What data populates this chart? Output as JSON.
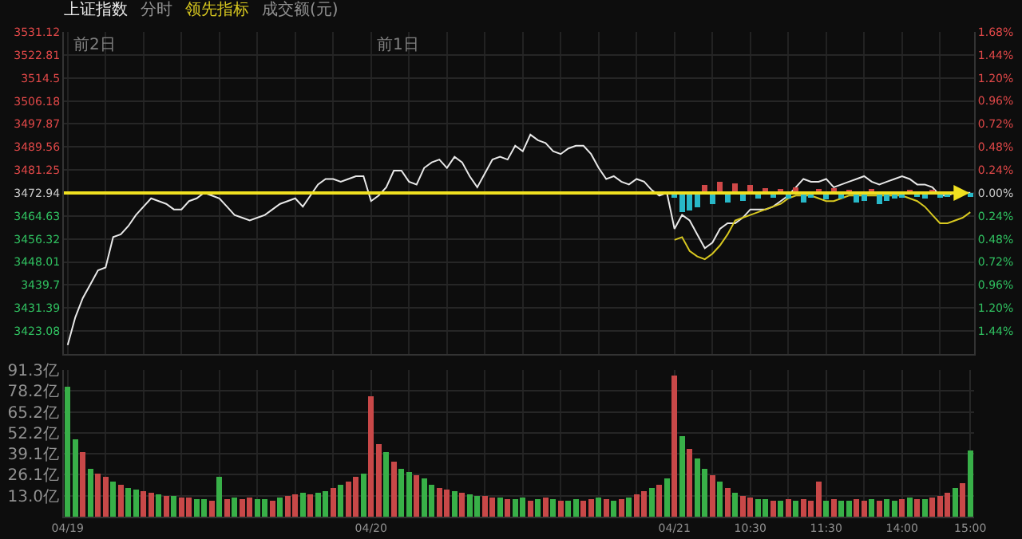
{
  "chart_data": [
    {
      "type": "line",
      "legend": "top left",
      "grid": true,
      "tick_labels": "y",
      "annotations": [
        "分时",
        "成交额(元)",
        "前2日",
        "前1日"
      ],
      "categories": [
        null,
        null,
        null,
        null,
        null,
        null,
        null,
        null,
        null,
        null,
        null,
        null,
        null,
        null,
        null,
        null,
        null,
        null,
        null,
        null,
        null,
        null,
        null,
        null,
        null,
        null,
        null,
        null,
        null,
        null,
        null,
        null,
        null,
        null,
        null,
        null,
        null,
        null,
        null,
        null,
        null,
        null,
        null,
        null,
        null,
        null,
        null,
        null,
        null,
        null,
        null,
        null,
        null,
        null,
        null,
        null,
        null,
        null,
        null,
        null,
        null,
        null,
        null,
        null,
        null,
        null,
        null,
        null,
        null,
        null,
        null,
        null,
        null,
        null,
        null,
        null,
        null,
        null,
        null,
        null,
        null,
        null,
        null,
        null,
        null,
        null,
        null,
        null,
        null,
        null,
        null,
        null,
        null,
        null,
        null,
        null,
        null,
        null,
        null,
        null,
        null,
        null,
        null,
        null,
        null,
        null,
        null,
        null,
        null,
        null,
        null,
        null,
        null,
        null,
        null,
        null,
        null,
        null,
        null,
        null
      ],
      "ylim": [
        3414.77,
        3531.12
      ],
      "yticks": [
        3531.12,
        3522.81,
        3514.5,
        3506.18,
        3497.87,
        3489.56,
        3481.25,
        3472.94,
        3464.63,
        3456.32,
        3448.01,
        3439.7,
        3431.39,
        3423.08
      ],
      "y2lim": [
        -1.68,
        1.68
      ],
      "y2ticks": [
        {
          "value": 1.68,
          "label": "1.68%"
        },
        {
          "value": 1.44,
          "label": "1.44%"
        },
        {
          "value": 1.2,
          "label": "1.20%"
        },
        {
          "value": 0.96,
          "label": "0.96%"
        },
        {
          "value": 0.72,
          "label": "0.72%"
        },
        {
          "value": 0.48,
          "label": "0.48%"
        },
        {
          "value": 0.24,
          "label": "0.24%"
        },
        {
          "value": 0,
          "label": "0.00%"
        },
        {
          "value": -0.24,
          "label": "0.24%"
        },
        {
          "value": -0.48,
          "label": "0.48%"
        },
        {
          "value": -0.72,
          "label": "0.72%"
        },
        {
          "value": -0.96,
          "label": "0.96%"
        },
        {
          "value": -1.2,
          "label": "1.20%"
        },
        {
          "value": -1.44,
          "label": "1.44%"
        }
      ],
      "ref_lines": [
        {
          "axis": "y",
          "value": 3472.94,
          "color": "#f0e020"
        }
      ],
      "series": [
        {
          "name": "上证指数",
          "color": "#e8e8e8",
          "values": [
            3418,
            3428,
            3435,
            3440,
            3445,
            3446,
            3457,
            3458,
            3461,
            3465,
            3468,
            3471,
            3470,
            3469,
            3467,
            3467,
            3470,
            3471,
            3473,
            3472,
            3471,
            3468,
            3465,
            3464,
            3463,
            3464,
            3465,
            3467,
            3469,
            3470,
            3471,
            3468,
            3472,
            3476,
            3478,
            3478,
            3477,
            3478,
            3479,
            3479,
            3470,
            3472,
            3475,
            3481,
            3481,
            3477,
            3476,
            3482,
            3484,
            3485,
            3482,
            3486,
            3484,
            3479,
            3475,
            3480,
            3485,
            3486,
            3485,
            3490,
            3488,
            3494,
            3492,
            3491,
            3488,
            3487,
            3489,
            3490,
            3490,
            3487,
            3482,
            3478,
            3479,
            3477,
            3476,
            3478,
            3477,
            3474,
            3472,
            3473,
            3460,
            3465,
            3463,
            3458,
            3453,
            3455,
            3460,
            3462,
            3462,
            3464,
            3467,
            3467,
            3467,
            3468,
            3470,
            3472,
            3475,
            3478,
            3477,
            3477,
            3478,
            3475,
            3476,
            3477,
            3478,
            3479,
            3477,
            3476,
            3477,
            3478,
            3479,
            3478,
            3476,
            3476,
            3475,
            3472,
            3472,
            3473,
            3473,
            3473
          ]
        },
        {
          "name": "领先指标",
          "color": "#d8c820",
          "values": [
            null,
            null,
            null,
            null,
            null,
            null,
            null,
            null,
            null,
            null,
            null,
            null,
            null,
            null,
            null,
            null,
            null,
            null,
            null,
            null,
            null,
            null,
            null,
            null,
            null,
            null,
            null,
            null,
            null,
            null,
            null,
            null,
            null,
            null,
            null,
            null,
            null,
            null,
            null,
            null,
            null,
            null,
            null,
            null,
            null,
            null,
            null,
            null,
            null,
            null,
            null,
            null,
            null,
            null,
            null,
            null,
            null,
            null,
            null,
            null,
            null,
            null,
            null,
            null,
            null,
            null,
            null,
            null,
            null,
            null,
            null,
            null,
            null,
            null,
            null,
            null,
            null,
            null,
            null,
            null,
            3456,
            3457,
            3452,
            3450,
            3449,
            3451,
            3454,
            3458,
            3463,
            3464,
            3465,
            3466,
            3467,
            3468,
            3469,
            3471,
            3472,
            3472,
            3472,
            3471,
            3470,
            3470,
            3471,
            3472,
            3472,
            3472,
            3472,
            3472,
            3472,
            3472,
            3472,
            3471,
            3470,
            3468,
            3465,
            3462,
            3462,
            3463,
            3464,
            3466
          ]
        },
        {
          "type": "bar",
          "axis": "y2",
          "values": [
            null,
            null,
            null,
            null,
            null,
            null,
            null,
            null,
            null,
            null,
            null,
            null,
            null,
            null,
            null,
            null,
            null,
            null,
            null,
            null,
            null,
            null,
            null,
            null,
            null,
            null,
            null,
            null,
            null,
            null,
            null,
            null,
            null,
            null,
            null,
            null,
            null,
            null,
            null,
            null,
            null,
            null,
            null,
            null,
            null,
            null,
            null,
            null,
            null,
            null,
            null,
            null,
            null,
            null,
            null,
            null,
            null,
            null,
            null,
            null,
            null,
            null,
            null,
            null,
            null,
            null,
            null,
            null,
            null,
            null,
            null,
            null,
            null,
            null,
            null,
            null,
            null,
            null,
            null,
            null,
            -0.05,
            -0.2,
            -0.18,
            -0.15,
            0.08,
            -0.12,
            0.12,
            -0.1,
            0.1,
            -0.08,
            0.08,
            -0.06,
            0.05,
            -0.05,
            0.04,
            -0.06,
            0.06,
            -0.1,
            -0.05,
            0.04,
            -0.07,
            0.05,
            -0.06,
            0.03,
            -0.1,
            -0.08,
            0.04,
            -0.12,
            -0.08,
            -0.06,
            -0.05,
            0.03,
            -0.04,
            -0.06,
            0.03,
            -0.05,
            -0.04,
            null,
            null,
            -0.04
          ],
          "colors": [
            null,
            null,
            null,
            null,
            null,
            null,
            null,
            null,
            null,
            null,
            null,
            null,
            null,
            null,
            null,
            null,
            null,
            null,
            null,
            null,
            null,
            null,
            null,
            null,
            null,
            null,
            null,
            null,
            null,
            null,
            null,
            null,
            null,
            null,
            null,
            null,
            null,
            null,
            null,
            null,
            null,
            null,
            null,
            null,
            null,
            null,
            null,
            null,
            null,
            null,
            null,
            null,
            null,
            null,
            null,
            null,
            null,
            null,
            null,
            null,
            null,
            null,
            null,
            null,
            null,
            null,
            null,
            null,
            null,
            null,
            null,
            null,
            null,
            null,
            null,
            null,
            null,
            null,
            null,
            null,
            "#28b8c8",
            "#28b8c8",
            "#28b8c8",
            "#28b8c8",
            "#d04848",
            "#28b8c8",
            "#d04848",
            "#28b8c8",
            "#d04848",
            "#28b8c8",
            "#d04848",
            "#28b8c8",
            "#d04848",
            "#28b8c8",
            "#d04848",
            "#28b8c8",
            "#d04848",
            "#28b8c8",
            "#28b8c8",
            "#d04848",
            "#28b8c8",
            "#d04848",
            "#28b8c8",
            "#d04848",
            "#28b8c8",
            "#28b8c8",
            "#d04848",
            "#28b8c8",
            "#28b8c8",
            "#28b8c8",
            "#28b8c8",
            "#d04848",
            "#28b8c8",
            "#28b8c8",
            "#d04848",
            "#28b8c8",
            "#28b8c8",
            null,
            null,
            "#28b8c8"
          ]
        }
      ]
    },
    {
      "type": "bar",
      "grid": true,
      "categories": [
        "04/19",
        null,
        null,
        null,
        null,
        null,
        null,
        null,
        null,
        null,
        null,
        null,
        null,
        null,
        null,
        null,
        null,
        null,
        null,
        null,
        null,
        null,
        null,
        null,
        null,
        null,
        null,
        null,
        null,
        null,
        null,
        null,
        null,
        null,
        null,
        null,
        null,
        null,
        null,
        null,
        "04/20",
        null,
        null,
        null,
        null,
        null,
        null,
        null,
        null,
        null,
        null,
        null,
        null,
        null,
        null,
        null,
        null,
        null,
        null,
        null,
        null,
        null,
        null,
        null,
        null,
        null,
        null,
        null,
        null,
        null,
        null,
        null,
        null,
        null,
        null,
        null,
        null,
        null,
        null,
        null,
        "04/21",
        null,
        null,
        null,
        null,
        null,
        null,
        null,
        null,
        null,
        "10:30",
        null,
        null,
        null,
        null,
        null,
        null,
        null,
        null,
        null,
        "11:30",
        null,
        null,
        null,
        null,
        null,
        null,
        null,
        null,
        null,
        "14:00",
        null,
        null,
        null,
        null,
        null,
        null,
        null,
        null,
        "15:00"
      ],
      "ylim": [
        0,
        91.3
      ],
      "yticks": [
        {
          "value": 13.0,
          "label": "13.0亿"
        },
        {
          "value": 26.1,
          "label": "26.1亿"
        },
        {
          "value": 39.1,
          "label": "39.1亿"
        },
        {
          "value": 52.2,
          "label": "52.2亿"
        },
        {
          "value": 65.2,
          "label": "65.2亿"
        },
        {
          "value": 78.2,
          "label": "78.2亿"
        },
        {
          "value": 91.3,
          "label": "91.3亿"
        }
      ],
      "values": [
        81,
        48,
        40,
        30,
        27,
        25,
        22,
        20,
        18,
        17,
        16,
        15,
        14,
        13,
        13,
        12,
        12,
        11,
        11,
        10,
        25,
        11,
        12,
        11,
        12,
        11,
        11,
        10,
        12,
        13,
        14,
        15,
        14,
        15,
        16,
        18,
        20,
        22,
        25,
        27,
        75,
        45,
        40,
        34,
        30,
        28,
        26,
        24,
        20,
        18,
        17,
        16,
        15,
        14,
        13,
        13,
        12,
        12,
        11,
        11,
        12,
        10,
        11,
        12,
        11,
        10,
        10,
        11,
        10,
        11,
        12,
        11,
        10,
        11,
        12,
        14,
        16,
        18,
        20,
        24,
        88,
        50,
        42,
        36,
        30,
        26,
        22,
        18,
        15,
        13,
        12,
        11,
        11,
        10,
        10,
        11,
        10,
        11,
        10,
        22,
        10,
        11,
        10,
        10,
        11,
        10,
        11,
        10,
        11,
        10,
        11,
        12,
        11,
        11,
        12,
        13,
        15,
        18,
        21,
        41
      ],
      "colors": [
        "#38b048",
        "#38b048",
        "#c84848",
        "#38b048",
        "#c84848",
        "#c84848",
        "#38b048",
        "#c84848",
        "#38b048",
        "#38b048",
        "#c84848",
        "#c84848",
        "#38b048",
        "#c84848",
        "#38b048",
        "#c84848",
        "#c84848",
        "#38b048",
        "#38b048",
        "#c84848",
        "#38b048",
        "#c84848",
        "#38b048",
        "#c84848",
        "#c84848",
        "#38b048",
        "#38b048",
        "#c84848",
        "#38b048",
        "#c84848",
        "#c84848",
        "#38b048",
        "#c84848",
        "#38b048",
        "#38b048",
        "#c84848",
        "#38b048",
        "#c84848",
        "#c84848",
        "#38b048",
        "#c84848",
        "#c84848",
        "#38b048",
        "#c84848",
        "#38b048",
        "#38b048",
        "#c84848",
        "#38b048",
        "#38b048",
        "#c84848",
        "#c84848",
        "#38b048",
        "#c84848",
        "#38b048",
        "#38b048",
        "#c84848",
        "#c84848",
        "#38b048",
        "#c84848",
        "#38b048",
        "#38b048",
        "#c84848",
        "#38b048",
        "#c84848",
        "#38b048",
        "#c84848",
        "#38b048",
        "#38b048",
        "#c84848",
        "#c84848",
        "#38b048",
        "#c84848",
        "#38b048",
        "#c84848",
        "#38b048",
        "#c84848",
        "#c84848",
        "#38b048",
        "#c84848",
        "#38b048",
        "#c84848",
        "#38b048",
        "#c84848",
        "#38b048",
        "#38b048",
        "#c84848",
        "#38b048",
        "#c84848",
        "#38b048",
        "#c84848",
        "#c84848",
        "#38b048",
        "#38b048",
        "#c84848",
        "#38b048",
        "#c84848",
        "#38b048",
        "#c84848",
        "#c84848",
        "#c84848",
        "#38b048",
        "#c84848",
        "#38b048",
        "#38b048",
        "#c84848",
        "#c84848",
        "#38b048",
        "#c84848",
        "#38b048",
        "#38b048",
        "#c84848",
        "#38b048",
        "#c84848",
        "#38b048",
        "#c84848",
        "#c84848",
        "#c84848",
        "#38b048",
        "#c84848",
        "#38b048"
      ]
    }
  ]
}
